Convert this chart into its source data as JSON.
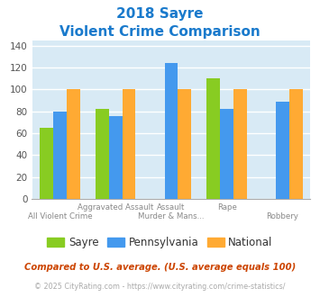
{
  "title_line1": "2018 Sayre",
  "title_line2": "Violent Crime Comparison",
  "title_color": "#1a7acc",
  "series": {
    "Sayre": [
      65,
      82,
      null,
      110,
      null
    ],
    "Pennsylvania": [
      80,
      76,
      124,
      82,
      89
    ],
    "National": [
      100,
      100,
      100,
      100,
      100
    ]
  },
  "colors": {
    "Sayre": "#88cc22",
    "Pennsylvania": "#4499ee",
    "National": "#ffaa33"
  },
  "ylim": [
    0,
    145
  ],
  "yticks": [
    0,
    20,
    40,
    60,
    80,
    100,
    120,
    140
  ],
  "bg_color": "#d8eaf5",
  "grid_color": "#ffffff",
  "top_labels": [
    "",
    "Aggravated Assault",
    "Assault",
    "Rape",
    ""
  ],
  "bottom_labels": [
    "All Violent Crime",
    "",
    "Murder & Mans...",
    "",
    "Robbery"
  ],
  "footnote1": "Compared to U.S. average. (U.S. average equals 100)",
  "footnote2": "© 2025 CityRating.com - https://www.cityrating.com/crime-statistics/",
  "footnote1_color": "#cc4400",
  "footnote2_color": "#aaaaaa",
  "footnote2_url_color": "#4499ee"
}
